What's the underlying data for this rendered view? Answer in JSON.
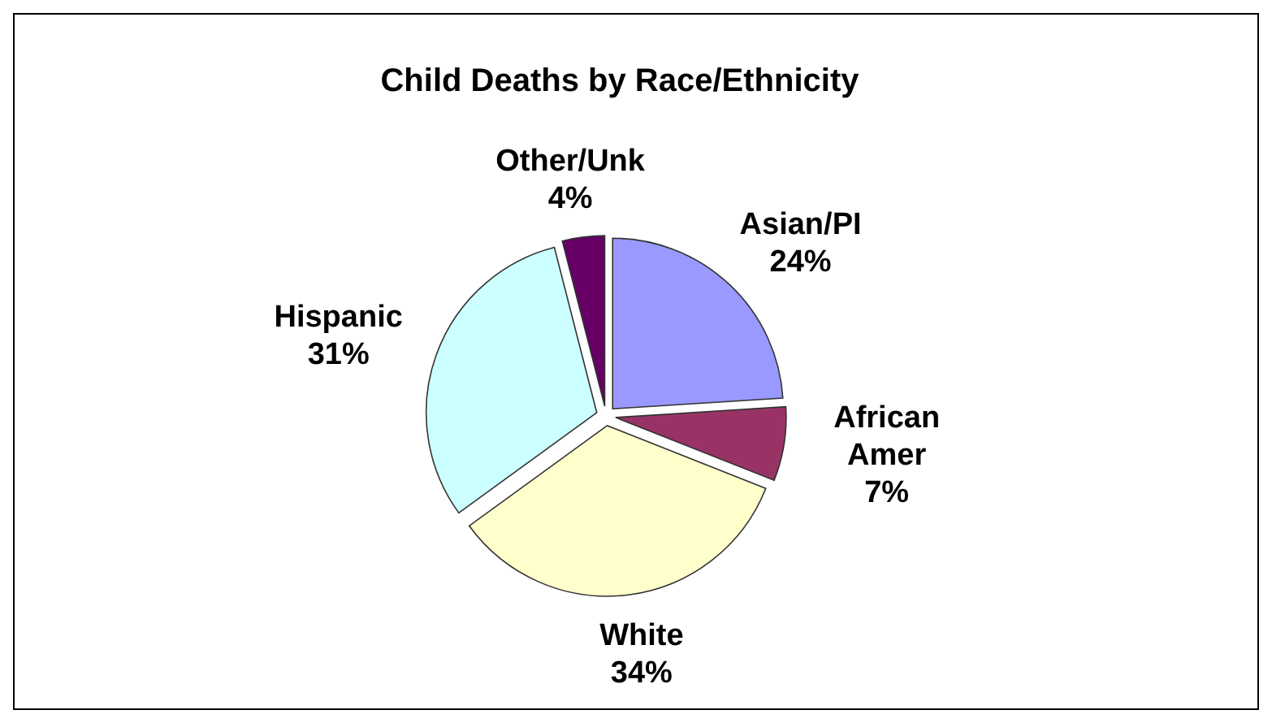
{
  "chart_data": {
    "type": "pie",
    "title": "Child Deaths by Race/Ethnicity",
    "categories": [
      "Asian/PI",
      "African Amer",
      "White",
      "Hispanic",
      "Other/Unk"
    ],
    "values": [
      24,
      7,
      34,
      31,
      4
    ],
    "value_labels": [
      "24%",
      "7%",
      "34%",
      "31%",
      "4%"
    ],
    "colors": [
      "#9999ff",
      "#993366",
      "#ffffcc",
      "#ccffff",
      "#660066"
    ],
    "legend": false
  }
}
